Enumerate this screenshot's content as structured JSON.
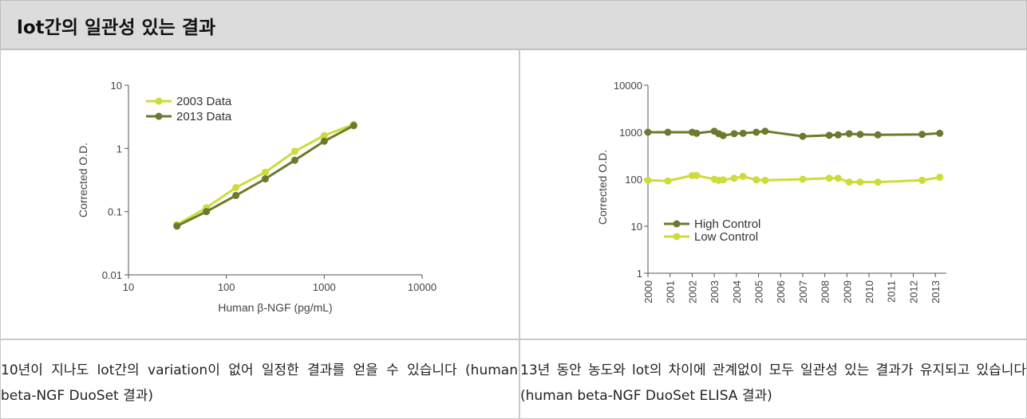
{
  "header": {
    "title": "lot간의 일관성 있는 결과"
  },
  "captions": {
    "left": " 10년이 지나도 lot간의 variation이 없어 일정한 결과를 얻을 수 있습니다 (human beta-NGF DuoSet 결과)",
    "right": " 13년 동안 농도와 lot의 차이에 관계없이 모두 일관성 있는 결과가 유지되고 있습니다 (human beta-NGF DuoSet ELISA 결과)"
  },
  "colors": {
    "light_green": "#cddc39",
    "dark_green": "#6b7a2e"
  },
  "chart_data": [
    {
      "type": "line",
      "xlabel": "Human β-NGF (pg/mL)",
      "ylabel": "Corrected O.D.",
      "xscale": "log",
      "yscale": "log",
      "xlim": [
        10,
        10000
      ],
      "ylim": [
        0.01,
        10
      ],
      "xticks": [
        "10",
        "100",
        "1000",
        "10000"
      ],
      "yticks": [
        "0.01",
        "0.1",
        "1",
        "10"
      ],
      "legend": "top-left",
      "grid": false,
      "series": [
        {
          "name": "2003 Data",
          "color": "#cddc39",
          "x": [
            31.25,
            62.5,
            125,
            250,
            500,
            1000,
            2000
          ],
          "y": [
            0.062,
            0.115,
            0.24,
            0.42,
            0.9,
            1.6,
            2.4
          ]
        },
        {
          "name": "2013 Data",
          "color": "#6b7a2e",
          "x": [
            31.25,
            62.5,
            125,
            250,
            500,
            1000,
            2000
          ],
          "y": [
            0.059,
            0.1,
            0.18,
            0.33,
            0.65,
            1.3,
            2.3
          ]
        }
      ]
    },
    {
      "type": "line",
      "ylabel": "Corrected O.D.",
      "yscale": "log",
      "xlim": [
        2000,
        2013.5
      ],
      "ylim": [
        1,
        10000
      ],
      "xticks": [
        "2000",
        "2001",
        "2002",
        "2003",
        "2004",
        "2005",
        "2006",
        "2007",
        "2008",
        "2009",
        "2010",
        "2011",
        "2012",
        "2013"
      ],
      "yticks": [
        "1",
        "10",
        "100",
        "1000",
        "10000"
      ],
      "legend": "center-left",
      "grid": false,
      "series": [
        {
          "name": "High Control",
          "color": "#6b7a2e",
          "x": [
            2000,
            2000.9,
            2002.0,
            2002.2,
            2003.0,
            2003.2,
            2003.4,
            2003.9,
            2004.3,
            2004.9,
            2005.3,
            2007.0,
            2008.2,
            2008.6,
            2009.1,
            2009.6,
            2010.4,
            2012.4,
            2013.2
          ],
          "y": [
            1000,
            1000,
            1000,
            950,
            1050,
            930,
            850,
            930,
            950,
            1000,
            1050,
            820,
            860,
            880,
            930,
            900,
            880,
            900,
            950
          ]
        },
        {
          "name": "Low Control",
          "color": "#cddc39",
          "x": [
            2000,
            2000.9,
            2002.0,
            2002.2,
            2003.0,
            2003.2,
            2003.4,
            2003.9,
            2004.3,
            2004.9,
            2005.3,
            2007.0,
            2008.2,
            2008.6,
            2009.1,
            2009.6,
            2010.4,
            2012.4,
            2013.2
          ],
          "y": [
            95,
            92,
            120,
            120,
            100,
            95,
            97,
            105,
            115,
            97,
            95,
            100,
            105,
            105,
            87,
            87,
            87,
            95,
            110
          ]
        }
      ]
    }
  ]
}
